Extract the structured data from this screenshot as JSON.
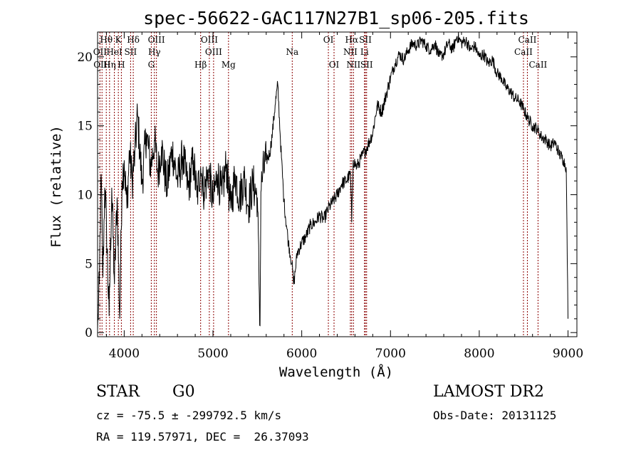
{
  "chart_data": {
    "type": "line",
    "title": "spec-56622-GAC117N27B1_sp06-205.fits",
    "xlabel": "Wavelength (Å)",
    "ylabel": "Flux (relative)",
    "xlim": [
      3700,
      9100
    ],
    "ylim": [
      -0.3,
      21.8
    ],
    "xticks": [
      4000,
      5000,
      6000,
      7000,
      8000,
      9000
    ],
    "yticks": [
      0,
      5,
      10,
      15,
      20
    ],
    "grid": false,
    "series": [
      {
        "color": "#000000",
        "x": [
          3700,
          3720,
          3740,
          3760,
          3780,
          3800,
          3830,
          3860,
          3890,
          3920,
          3950,
          3975,
          4000,
          4030,
          4060,
          4090,
          4120,
          4150,
          4200,
          4250,
          4300,
          4340,
          4380,
          4420,
          4480,
          4540,
          4600,
          4660,
          4720,
          4780,
          4820,
          4861,
          4900,
          4950,
          5000,
          5050,
          5100,
          5150,
          5200,
          5250,
          5300,
          5350,
          5400,
          5450,
          5500,
          5530,
          5540,
          5560,
          5600,
          5640,
          5670,
          5700,
          5730,
          5760,
          5800,
          5850,
          5890,
          5910,
          5950,
          6000,
          6050,
          6100,
          6150,
          6200,
          6250,
          6300,
          6350,
          6400,
          6450,
          6500,
          6550,
          6563,
          6580,
          6620,
          6680,
          6740,
          6800,
          6850,
          6900,
          6950,
          7000,
          7050,
          7100,
          7150,
          7200,
          7250,
          7300,
          7350,
          7400,
          7450,
          7500,
          7550,
          7600,
          7650,
          7700,
          7750,
          7800,
          7850,
          7900,
          7950,
          8000,
          8050,
          8100,
          8150,
          8200,
          8250,
          8300,
          8350,
          8400,
          8450,
          8500,
          8550,
          8600,
          8650,
          8700,
          8750,
          8800,
          8850,
          8900,
          8950,
          8980,
          9000
        ],
        "y": [
          0.2,
          3.5,
          11.5,
          4.0,
          10.5,
          7.8,
          1.2,
          10.5,
          3.5,
          9.8,
          1.0,
          11.0,
          12.5,
          9.0,
          13.2,
          11.0,
          13.0,
          15.8,
          10.8,
          14.5,
          12.0,
          14.0,
          11.5,
          13.5,
          10.5,
          13.3,
          11.0,
          12.8,
          10.5,
          12.5,
          9.8,
          12.0,
          10.2,
          11.8,
          9.5,
          11.5,
          10.0,
          12.2,
          9.0,
          11.5,
          9.8,
          11.2,
          9.2,
          10.8,
          9.8,
          0.5,
          10.2,
          11.5,
          12.5,
          13.0,
          14.5,
          16.5,
          18.0,
          14.0,
          9.5,
          6.5,
          5.0,
          3.5,
          5.8,
          6.5,
          7.0,
          7.8,
          8.0,
          8.5,
          8.2,
          9.0,
          9.5,
          10.0,
          10.8,
          11.0,
          11.5,
          8.0,
          12.5,
          12.0,
          12.8,
          13.5,
          14.5,
          16.5,
          16.0,
          17.2,
          18.5,
          19.5,
          20.2,
          19.8,
          20.5,
          21.0,
          20.8,
          21.2,
          20.8,
          20.5,
          21.0,
          20.0,
          20.2,
          21.0,
          20.5,
          21.5,
          21.0,
          21.2,
          20.5,
          20.8,
          20.0,
          20.2,
          19.5,
          19.8,
          18.8,
          18.5,
          17.8,
          17.5,
          17.0,
          16.8,
          16.2,
          15.5,
          15.0,
          14.8,
          14.2,
          14.0,
          13.5,
          13.8,
          13.0,
          12.5,
          12.0,
          1.0
        ]
      }
    ],
    "line_groups": [
      {
        "row": 0,
        "labels": [
          {
            "text": "Hθ",
            "wl": 3798
          },
          {
            "text": "K",
            "wl": 3934
          },
          {
            "text": "Hδ",
            "wl": 4102
          },
          {
            "text": "OIII",
            "wl": 4363
          },
          {
            "text": "OIII",
            "wl": 4959
          },
          {
            "text": "OI",
            "wl": 6300
          },
          {
            "text": "Hα",
            "wl": 6563
          },
          {
            "text": "SII",
            "wl": 6717
          },
          {
            "text": "CaII",
            "wl": 8542
          }
        ]
      },
      {
        "row": 1,
        "labels": [
          {
            "text": "OII",
            "wl": 3727
          },
          {
            "text": "HeI",
            "wl": 3889
          },
          {
            "text": "SII",
            "wl": 4072
          },
          {
            "text": "Hγ",
            "wl": 4340
          },
          {
            "text": "OIII",
            "wl": 5007
          },
          {
            "text": "Na",
            "wl": 5893
          },
          {
            "text": "NII",
            "wl": 6548
          },
          {
            "text": "Li",
            "wl": 6707
          },
          {
            "text": "CaII",
            "wl": 8498
          }
        ]
      },
      {
        "row": 2,
        "labels": [
          {
            "text": "OIII",
            "wl": 3750
          },
          {
            "text": "Hη",
            "wl": 3835
          },
          {
            "text": "H",
            "wl": 3968
          },
          {
            "text": "G",
            "wl": 4305
          },
          {
            "text": "Hβ",
            "wl": 4861
          },
          {
            "text": "Mg",
            "wl": 5175
          },
          {
            "text": "OI",
            "wl": 6364
          },
          {
            "text": "NII",
            "wl": 6583
          },
          {
            "text": "SII",
            "wl": 6731
          },
          {
            "text": "CaII",
            "wl": 8662
          }
        ]
      }
    ],
    "line_color": "#8b0000"
  },
  "info": {
    "object_class": "STAR",
    "subclass": "G0",
    "survey": "LAMOST DR2",
    "cz": "cz = -75.5 ± -299792.5 km/s",
    "obs_date": "Obs-Date: 20131125",
    "radec": "RA = 119.57971, DEC =  26.37093"
  }
}
